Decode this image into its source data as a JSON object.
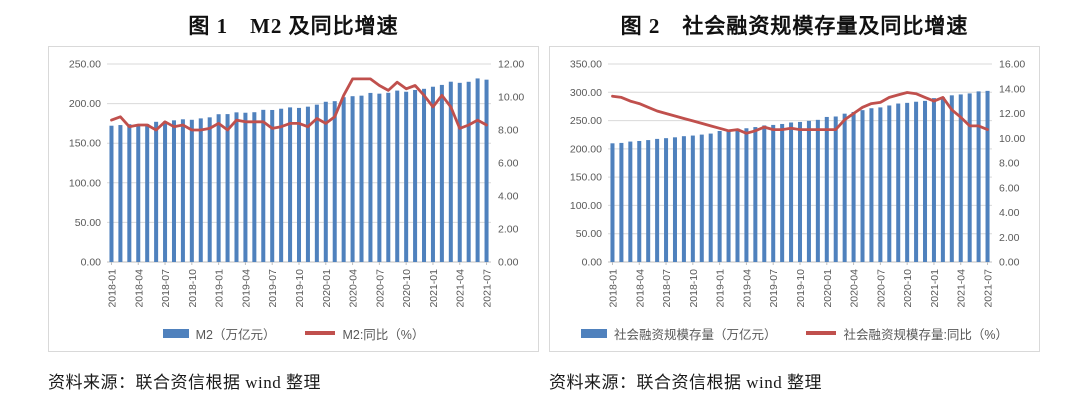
{
  "page": {
    "background": "#ffffff"
  },
  "colors": {
    "bar": "#4F81BD",
    "line": "#C0504D",
    "gridline": "#d9d9d9",
    "axis_text": "#595959",
    "panel_border": "#d9d9d9"
  },
  "figures": [
    {
      "title": "图 1　M2 及同比增速",
      "source_note": "资料来源：联合资信根据 wind 整理",
      "legend": [
        {
          "label": "M2（万亿元）",
          "marker": "bar",
          "color": "#4F81BD"
        },
        {
          "label": "M2:同比（%）",
          "marker": "line",
          "color": "#C0504D"
        }
      ]
    },
    {
      "title": "图 2　社会融资规模存量及同比增速",
      "source_note": "资料来源：联合资信根据 wind 整理",
      "legend": [
        {
          "label": "社会融资规模存量（万亿元）",
          "marker": "bar",
          "color": "#4F81BD"
        },
        {
          "label": "社会融资规模存量:同比（%）",
          "marker": "line",
          "color": "#C0504D"
        }
      ]
    }
  ],
  "chart_data": [
    {
      "type": "bar+line",
      "title": "图 1　M2 及同比增速",
      "categories": [
        "2018-01",
        "2018-02",
        "2018-03",
        "2018-04",
        "2018-05",
        "2018-06",
        "2018-07",
        "2018-08",
        "2018-09",
        "2018-10",
        "2018-11",
        "2018-12",
        "2019-01",
        "2019-02",
        "2019-03",
        "2019-04",
        "2019-05",
        "2019-06",
        "2019-07",
        "2019-08",
        "2019-09",
        "2019-10",
        "2019-11",
        "2019-12",
        "2020-01",
        "2020-02",
        "2020-03",
        "2020-04",
        "2020-05",
        "2020-06",
        "2020-07",
        "2020-08",
        "2020-09",
        "2020-10",
        "2020-11",
        "2020-12",
        "2021-01",
        "2021-02",
        "2021-03",
        "2021-04",
        "2021-05",
        "2021-06",
        "2021-07"
      ],
      "x_tick_every": 3,
      "x_tick_labels": [
        "2018-01",
        "2018-04",
        "2018-07",
        "2018-10",
        "2019-01",
        "2019-04",
        "2019-07",
        "2019-10",
        "2020-01",
        "2020-04",
        "2020-07",
        "2020-10",
        "2021-01",
        "2021-04",
        "2021-07"
      ],
      "series": [
        {
          "name": "M2（万亿元）",
          "type": "bar",
          "axis": "left",
          "color": "#4F81BD",
          "values": [
            172.08,
            172.91,
            173.99,
            173.77,
            174.31,
            177.02,
            177.62,
            178.87,
            180.17,
            179.56,
            181.32,
            182.67,
            186.59,
            186.74,
            188.94,
            188.47,
            189.12,
            192.14,
            191.94,
            193.55,
            195.23,
            194.56,
            196.14,
            198.65,
            202.31,
            203.08,
            208.09,
            209.35,
            210.02,
            213.49,
            212.55,
            213.68,
            216.41,
            214.97,
            217.2,
            218.68,
            221.3,
            223.6,
            227.65,
            226.21,
            227.55,
            231.78,
            230.22
          ]
        },
        {
          "name": "M2:同比（%）",
          "type": "line",
          "axis": "right",
          "color": "#C0504D",
          "values": [
            8.6,
            8.8,
            8.2,
            8.3,
            8.3,
            8.0,
            8.5,
            8.2,
            8.3,
            8.0,
            8.0,
            8.1,
            8.4,
            8.0,
            8.6,
            8.5,
            8.5,
            8.5,
            8.1,
            8.2,
            8.4,
            8.4,
            8.2,
            8.7,
            8.4,
            8.8,
            10.1,
            11.1,
            11.1,
            11.1,
            10.7,
            10.4,
            10.9,
            10.5,
            10.7,
            10.1,
            9.4,
            10.1,
            9.4,
            8.1,
            8.3,
            8.6,
            8.3
          ]
        }
      ],
      "left_axis": {
        "min": 0,
        "max": 250,
        "step": 50,
        "tick_labels": [
          "0.00",
          "50.00",
          "100.00",
          "150.00",
          "200.00",
          "250.00"
        ]
      },
      "right_axis": {
        "min": 0,
        "max": 12,
        "step": 2,
        "tick_labels": [
          "0.00",
          "2.00",
          "4.00",
          "6.00",
          "8.00",
          "10.00",
          "12.00"
        ]
      },
      "grid": true,
      "legend_position": "bottom"
    },
    {
      "type": "bar+line",
      "title": "图 2　社会融资规模存量及同比增速",
      "categories": [
        "2018-01",
        "2018-02",
        "2018-03",
        "2018-04",
        "2018-05",
        "2018-06",
        "2018-07",
        "2018-08",
        "2018-09",
        "2018-10",
        "2018-11",
        "2018-12",
        "2019-01",
        "2019-02",
        "2019-03",
        "2019-04",
        "2019-05",
        "2019-06",
        "2019-07",
        "2019-08",
        "2019-09",
        "2019-10",
        "2019-11",
        "2019-12",
        "2020-01",
        "2020-02",
        "2020-03",
        "2020-04",
        "2020-05",
        "2020-06",
        "2020-07",
        "2020-08",
        "2020-09",
        "2020-10",
        "2020-11",
        "2020-12",
        "2021-01",
        "2021-02",
        "2021-03",
        "2021-04",
        "2021-05",
        "2021-06",
        "2021-07"
      ],
      "x_tick_every": 3,
      "x_tick_labels": [
        "2018-01",
        "2018-04",
        "2018-07",
        "2018-10",
        "2019-01",
        "2019-04",
        "2019-07",
        "2019-10",
        "2020-01",
        "2020-04",
        "2020-07",
        "2020-10",
        "2021-01",
        "2021-04",
        "2021-07"
      ],
      "series": [
        {
          "name": "社会融资规模存量（万亿元）",
          "type": "bar",
          "axis": "left",
          "color": "#4F81BD",
          "values": [
            209.8,
            210.5,
            212.9,
            213.9,
            215.5,
            217.6,
            218.9,
            220.4,
            222.4,
            223.5,
            225.2,
            227.0,
            231.6,
            232.3,
            235.9,
            236.4,
            238.5,
            241.4,
            242.3,
            244.0,
            246.6,
            247.6,
            249.5,
            251.3,
            256.4,
            257.2,
            262.2,
            265.2,
            268.4,
            271.8,
            273.3,
            276.7,
            280.1,
            281.3,
            283.3,
            284.8,
            289.7,
            291.4,
            294.6,
            296.2,
            298.0,
            301.6,
            302.5
          ]
        },
        {
          "name": "社会融资规模存量:同比（%）",
          "type": "line",
          "axis": "right",
          "color": "#C0504D",
          "values": [
            13.4,
            13.3,
            13.0,
            12.8,
            12.5,
            12.2,
            12.0,
            11.8,
            11.6,
            11.4,
            11.2,
            11.0,
            10.8,
            10.6,
            10.7,
            10.4,
            10.6,
            10.9,
            10.7,
            10.7,
            10.8,
            10.7,
            10.7,
            10.7,
            10.7,
            10.7,
            11.5,
            12.0,
            12.5,
            12.8,
            12.9,
            13.3,
            13.5,
            13.7,
            13.6,
            13.3,
            13.0,
            13.3,
            12.3,
            11.7,
            11.0,
            11.0,
            10.7
          ]
        }
      ],
      "left_axis": {
        "min": 0,
        "max": 350,
        "step": 50,
        "tick_labels": [
          "0.00",
          "50.00",
          "100.00",
          "150.00",
          "200.00",
          "250.00",
          "300.00",
          "350.00"
        ]
      },
      "right_axis": {
        "min": 0,
        "max": 16,
        "step": 2,
        "tick_labels": [
          "0.00",
          "2.00",
          "4.00",
          "6.00",
          "8.00",
          "10.00",
          "12.00",
          "14.00",
          "16.00"
        ]
      },
      "grid": true,
      "legend_position": "bottom"
    }
  ]
}
